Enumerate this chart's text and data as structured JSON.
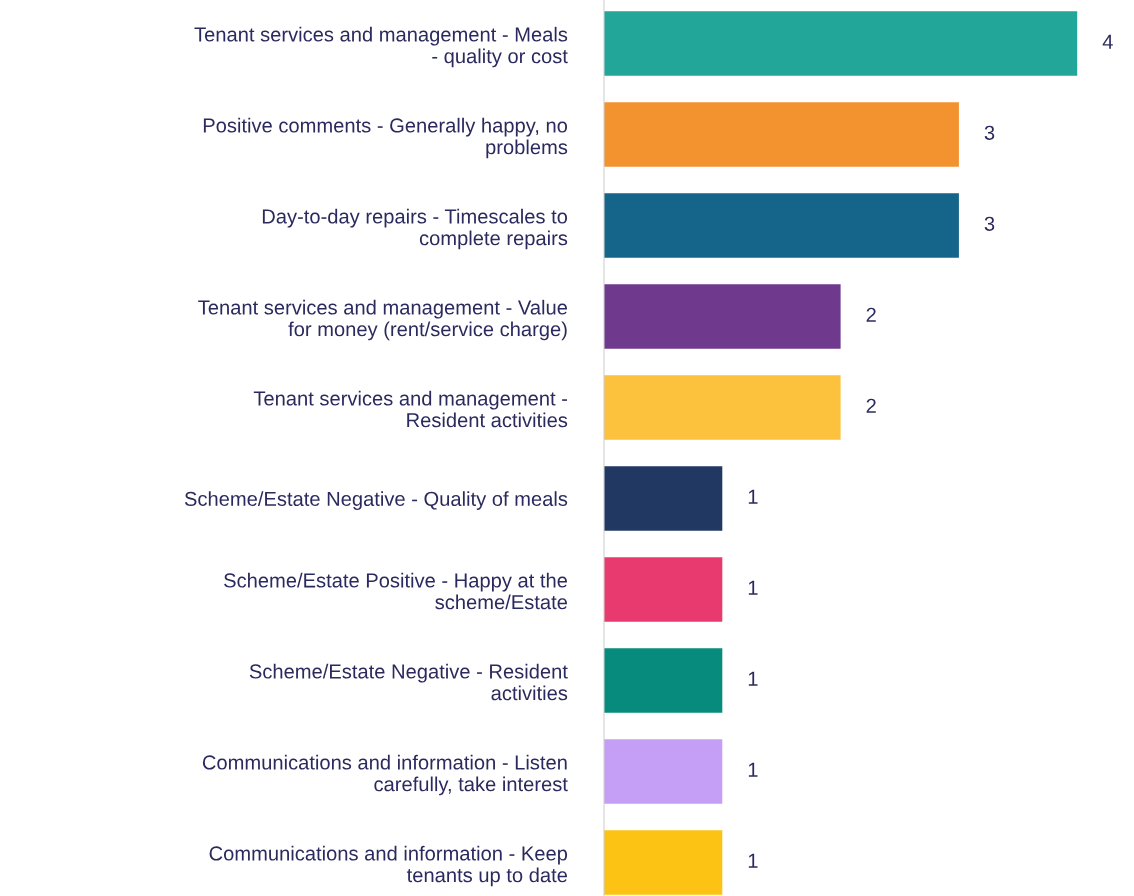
{
  "chart_data": {
    "type": "bar",
    "orientation": "horizontal",
    "categories": [
      "Tenant services and management - Meals\n- quality or cost",
      "Positive comments - Generally happy, no\nproblems",
      "Day-to-day repairs - Timescales to\ncomplete repairs",
      "Tenant services and management - Value\nfor money (rent/service charge)",
      "Tenant services and management -\nResident activities",
      "Scheme/Estate Negative - Quality of meals",
      "Scheme/Estate Positive - Happy at the\nscheme/Estate",
      "Scheme/Estate Negative - Resident\nactivities",
      "Communications and information - Listen\ncarefully, take interest",
      "Communications and information - Keep\ntenants up to date"
    ],
    "values": [
      4,
      3,
      3,
      2,
      2,
      1,
      1,
      1,
      1,
      1
    ],
    "colors": [
      "#22a699",
      "#f2932f",
      "#156489",
      "#6f3a8d",
      "#fcc13d",
      "#213962",
      "#e83a6e",
      "#068b7d",
      "#c59ff5",
      "#fdc314"
    ],
    "tick_labels": "y",
    "data_labels": true,
    "grid": false,
    "legend": false
  }
}
